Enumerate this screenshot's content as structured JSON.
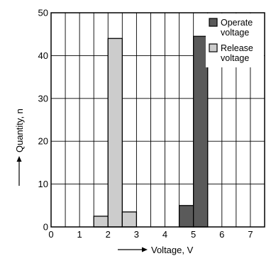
{
  "chart_data": {
    "type": "bar",
    "xlabel": "Voltage, V",
    "ylabel": "Quantity, n",
    "xlim": [
      0,
      7.5
    ],
    "ylim": [
      0,
      50
    ],
    "x_ticks": [
      0,
      1,
      2,
      3,
      4,
      5,
      6,
      7
    ],
    "y_ticks": [
      0,
      10,
      20,
      30,
      40,
      50
    ],
    "bin_width": 0.5,
    "grid": true,
    "legend_position": "top-right",
    "series": [
      {
        "name": "Operate voltage",
        "color": "#5a5a5a",
        "bins": [
          {
            "x0": 4.5,
            "x1": 5.0,
            "value": 5
          },
          {
            "x0": 5.0,
            "x1": 5.5,
            "value": 44.5
          }
        ]
      },
      {
        "name": "Release voltage",
        "color": "#cccccc",
        "bins": [
          {
            "x0": 1.5,
            "x1": 2.0,
            "value": 2.5
          },
          {
            "x0": 2.0,
            "x1": 2.5,
            "value": 44
          },
          {
            "x0": 2.5,
            "x1": 3.0,
            "value": 3.5
          }
        ]
      }
    ],
    "legend": [
      {
        "lines": [
          "Operate",
          "voltage"
        ],
        "color": "#5a5a5a"
      },
      {
        "lines": [
          "Release",
          "voltage"
        ],
        "color": "#cccccc"
      }
    ]
  }
}
